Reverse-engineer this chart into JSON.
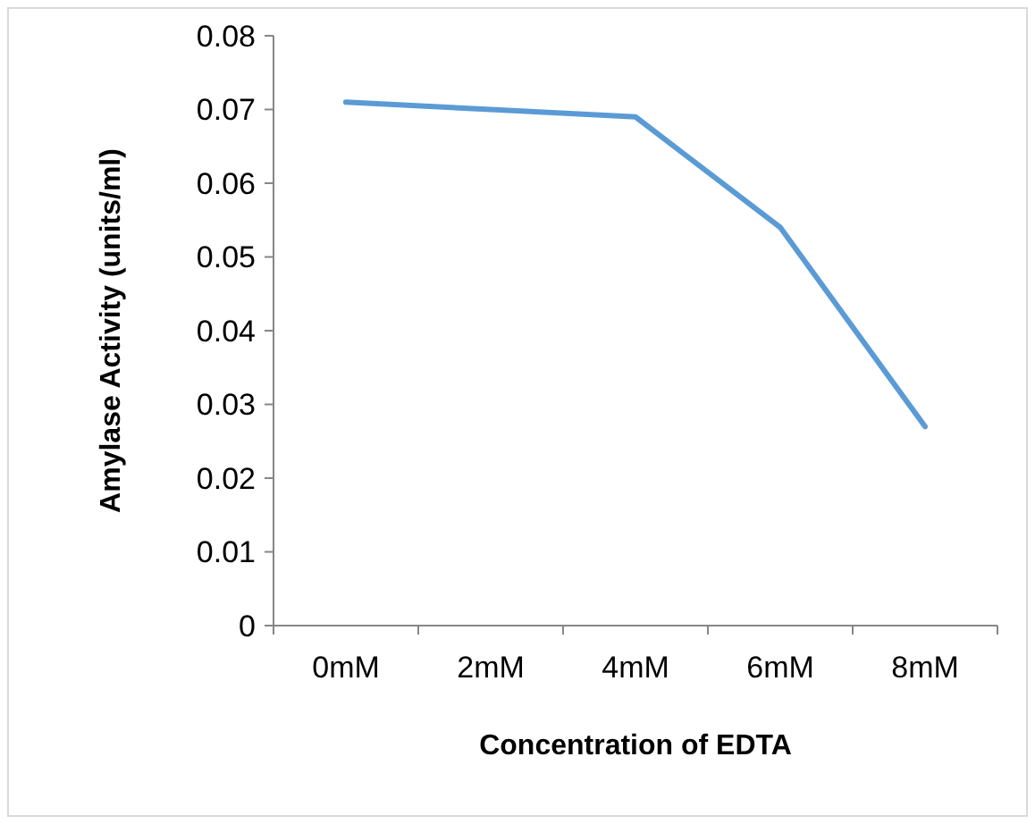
{
  "chart_data": {
    "type": "line",
    "xlabel": "Concentration of EDTA",
    "ylabel": "Amylase Activity (units/ml)",
    "categories": [
      "0mM",
      "2mM",
      "4mM",
      "6mM",
      "8mM"
    ],
    "series": [
      {
        "color": "#5b9bd5",
        "values": [
          0.071,
          0.07,
          0.069,
          0.054,
          0.027
        ]
      }
    ],
    "ylim": [
      0,
      0.08
    ],
    "yticks": [
      0,
      0.01,
      0.02,
      0.03,
      0.04,
      0.05,
      0.06,
      0.07,
      0.08
    ],
    "grid": false,
    "marker": "none",
    "line_style": "solid"
  }
}
